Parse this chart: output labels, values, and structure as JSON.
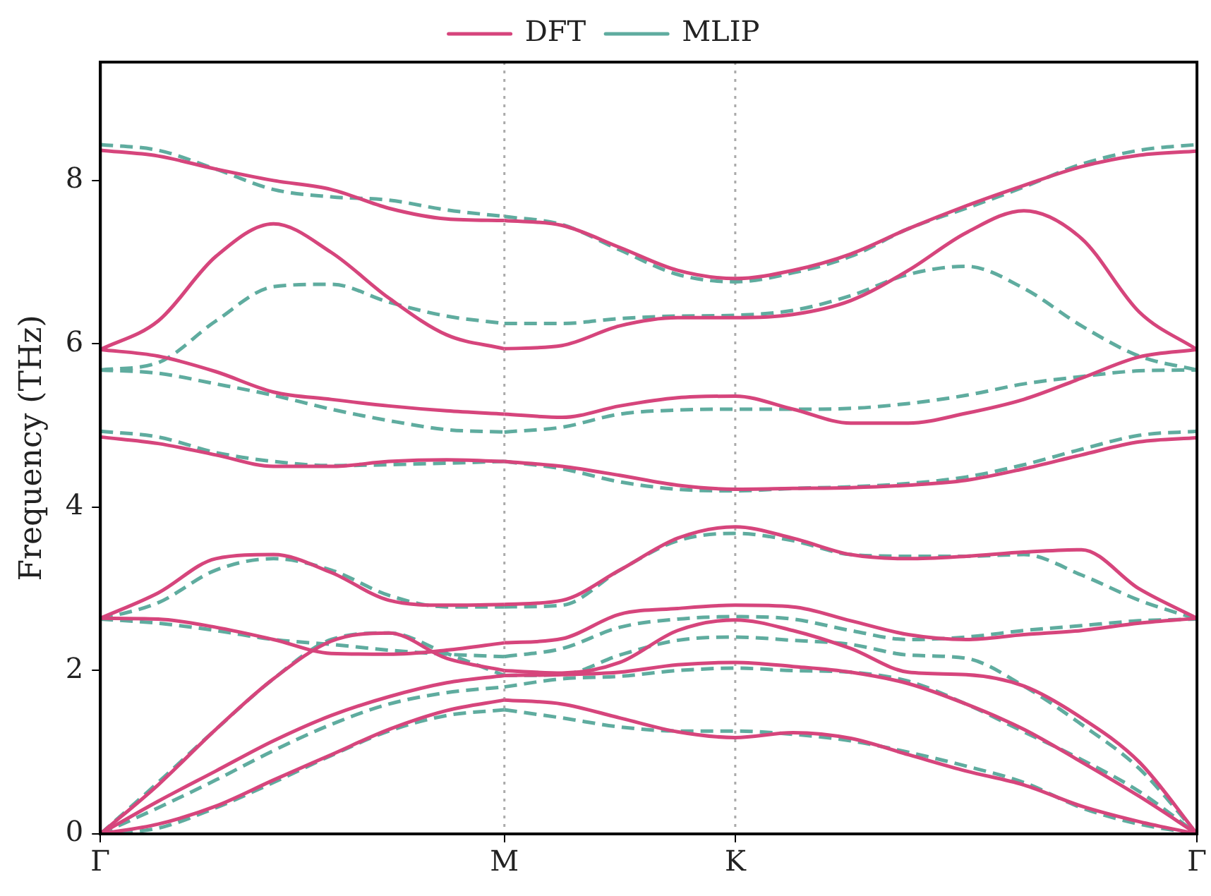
{
  "chart_data": {
    "type": "line",
    "ylabel": "Frequency (THz)",
    "legend": "top",
    "grid": false,
    "categories": [
      "Γ",
      null,
      null,
      null,
      null,
      null,
      null,
      "M",
      null,
      null,
      null,
      "K",
      null,
      null,
      null,
      null,
      null,
      null,
      null,
      "Γ"
    ],
    "ylim": [
      0,
      9.45
    ],
    "yticks": [
      0,
      2,
      4,
      6,
      8
    ],
    "ref_lines": [
      {
        "axis": "x",
        "value": "M",
        "color": "#aaaaaa",
        "line_style": "dotted"
      },
      {
        "axis": "x",
        "value": "K",
        "color": "#aaaaaa",
        "line_style": "dotted"
      }
    ],
    "series": [
      {
        "name": "DFT",
        "color": "#d6457c",
        "line_style": "solid",
        "values": [
          0,
          0.12,
          0.34,
          0.66,
          0.97,
          1.28,
          1.51,
          1.64,
          null,
          null,
          null,
          null,
          null,
          null,
          null,
          null,
          null,
          null,
          null,
          null
        ]
      },
      {
        "color": "#d6457c",
        "line_style": "solid",
        "values": [
          null,
          null,
          null,
          null,
          null,
          null,
          null,
          1.64,
          1.59,
          1.42,
          1.25,
          1.18,
          1.24,
          1.17,
          0.97,
          0.77,
          0.6,
          0.34,
          0.15,
          0
        ]
      },
      {
        "color": "#d6457c",
        "line_style": "solid",
        "values": [
          0,
          0.4,
          0.77,
          1.14,
          1.45,
          1.68,
          1.85,
          1.94,
          null,
          null,
          null,
          null,
          null,
          null,
          null,
          null,
          null,
          null,
          null,
          null
        ]
      },
      {
        "color": "#d6457c",
        "line_style": "solid",
        "values": [
          null,
          null,
          null,
          null,
          null,
          null,
          null,
          1.94,
          1.95,
          1.98,
          2.07,
          2.1,
          2.05,
          1.98,
          1.84,
          1.59,
          1.28,
          0.88,
          0.46,
          0
        ]
      },
      {
        "color": "#d6457c",
        "line_style": "solid",
        "values": [
          0,
          0.6,
          1.28,
          1.9,
          2.36,
          2.46,
          2.15,
          2.0,
          null,
          null,
          null,
          null,
          null,
          null,
          null,
          null,
          null,
          null,
          null,
          null
        ]
      },
      {
        "color": "#d6457c",
        "line_style": "solid",
        "values": [
          null,
          null,
          null,
          null,
          null,
          null,
          null,
          2.0,
          1.97,
          2.1,
          2.49,
          2.62,
          2.49,
          2.27,
          1.98,
          1.95,
          1.81,
          1.42,
          0.88,
          0
        ]
      },
      {
        "color": "#d6457c",
        "line_style": "solid",
        "values": [
          2.64,
          2.63,
          2.53,
          2.38,
          2.21,
          2.2,
          2.25,
          2.34,
          null,
          null,
          null,
          null,
          null,
          null,
          null,
          null,
          null,
          null,
          null,
          null
        ]
      },
      {
        "color": "#d6457c",
        "line_style": "solid",
        "values": [
          null,
          null,
          null,
          null,
          null,
          null,
          null,
          2.34,
          2.39,
          2.69,
          2.76,
          2.8,
          2.78,
          2.61,
          2.44,
          2.38,
          2.44,
          2.49,
          2.58,
          2.64
        ]
      },
      {
        "color": "#d6457c",
        "line_style": "solid",
        "values": [
          2.64,
          2.95,
          3.37,
          3.42,
          3.2,
          2.86,
          2.8,
          2.81,
          null,
          null,
          null,
          null,
          null,
          null,
          null,
          null,
          null,
          null,
          null,
          null
        ]
      },
      {
        "color": "#d6457c",
        "line_style": "solid",
        "values": [
          null,
          null,
          null,
          null,
          null,
          null,
          null,
          2.81,
          2.86,
          3.23,
          3.62,
          3.76,
          3.62,
          3.42,
          3.37,
          3.4,
          3.45,
          3.48,
          3.0,
          2.64
        ]
      },
      {
        "color": "#d6457c",
        "line_style": "solid",
        "values": [
          4.86,
          4.78,
          4.64,
          4.5,
          4.5,
          4.56,
          4.58,
          4.56,
          null,
          null,
          null,
          null,
          null,
          null,
          null,
          null,
          null,
          null,
          null,
          null
        ]
      },
      {
        "color": "#d6457c",
        "line_style": "solid",
        "values": [
          null,
          null,
          null,
          null,
          null,
          null,
          null,
          4.56,
          4.5,
          4.39,
          4.27,
          4.22,
          4.23,
          4.24,
          4.27,
          4.33,
          4.47,
          4.64,
          4.8,
          4.85
        ]
      },
      {
        "color": "#d6457c",
        "line_style": "solid",
        "values": [
          5.93,
          5.85,
          5.66,
          5.41,
          5.32,
          5.24,
          5.18,
          5.14,
          null,
          null,
          null,
          null,
          null,
          null,
          null,
          null,
          null,
          null,
          null,
          null
        ]
      },
      {
        "color": "#d6457c",
        "line_style": "solid",
        "values": [
          null,
          null,
          null,
          null,
          null,
          null,
          null,
          5.14,
          5.1,
          5.24,
          5.34,
          5.36,
          5.2,
          5.03,
          5.03,
          5.15,
          5.32,
          5.58,
          5.84,
          5.93
        ]
      },
      {
        "color": "#d6457c",
        "line_style": "solid",
        "values": [
          5.93,
          6.28,
          7.07,
          7.47,
          7.12,
          6.56,
          6.11,
          5.94,
          null,
          null,
          null,
          null,
          null,
          null,
          null,
          null,
          null,
          null,
          null,
          null
        ]
      },
      {
        "color": "#d6457c",
        "line_style": "solid",
        "values": [
          null,
          null,
          null,
          null,
          null,
          null,
          null,
          5.94,
          5.98,
          6.22,
          6.32,
          6.32,
          6.36,
          6.53,
          6.9,
          7.36,
          7.63,
          7.29,
          6.39,
          5.93
        ]
      },
      {
        "color": "#d6457c",
        "line_style": "solid",
        "values": [
          8.37,
          8.3,
          8.14,
          8.0,
          7.89,
          7.66,
          7.53,
          7.51,
          null,
          null,
          null,
          null,
          null,
          null,
          null,
          null,
          null,
          null,
          null,
          null
        ]
      },
      {
        "color": "#d6457c",
        "line_style": "solid",
        "values": [
          null,
          null,
          null,
          null,
          null,
          null,
          null,
          7.51,
          7.45,
          7.18,
          6.9,
          6.8,
          6.9,
          7.1,
          7.41,
          7.69,
          7.94,
          8.17,
          8.31,
          8.36
        ]
      },
      {
        "name": "MLIP",
        "color": "#5fac9f",
        "line_style": "dashed",
        "values": [
          0,
          0.07,
          0.32,
          0.63,
          0.96,
          1.26,
          1.45,
          1.52,
          null,
          null,
          null,
          null,
          null,
          null,
          null,
          null,
          null,
          null,
          null,
          null
        ]
      },
      {
        "color": "#5fac9f",
        "line_style": "dashed",
        "values": [
          null,
          null,
          null,
          null,
          null,
          null,
          null,
          1.52,
          1.42,
          1.31,
          1.26,
          1.26,
          1.22,
          1.14,
          1.0,
          0.83,
          0.63,
          0.32,
          0.12,
          0
        ]
      },
      {
        "color": "#5fac9f",
        "line_style": "dashed",
        "values": [
          0,
          0.32,
          0.66,
          1.02,
          1.34,
          1.59,
          1.73,
          1.8,
          null,
          null,
          null,
          null,
          null,
          null,
          null,
          null,
          null,
          null,
          null,
          null
        ]
      },
      {
        "color": "#5fac9f",
        "line_style": "dashed",
        "values": [
          null,
          null,
          null,
          null,
          null,
          null,
          null,
          1.8,
          1.9,
          1.93,
          2.0,
          2.03,
          2.0,
          1.98,
          1.87,
          1.59,
          1.25,
          0.91,
          0.52,
          0
        ]
      },
      {
        "color": "#5fac9f",
        "line_style": "dashed",
        "values": [
          0,
          0.63,
          1.28,
          1.9,
          2.38,
          2.46,
          2.21,
          1.94,
          null,
          null,
          null,
          null,
          null,
          null,
          null,
          null,
          null,
          null,
          null,
          null
        ]
      },
      {
        "color": "#5fac9f",
        "line_style": "dashed",
        "values": [
          null,
          null,
          null,
          null,
          null,
          null,
          null,
          1.94,
          1.95,
          2.19,
          2.37,
          2.41,
          2.37,
          2.32,
          2.19,
          2.15,
          1.81,
          1.34,
          0.8,
          0
        ]
      },
      {
        "color": "#5fac9f",
        "line_style": "dashed",
        "values": [
          2.63,
          2.58,
          2.49,
          2.38,
          2.32,
          2.25,
          2.2,
          2.17,
          null,
          null,
          null,
          null,
          null,
          null,
          null,
          null,
          null,
          null,
          null,
          null
        ]
      },
      {
        "color": "#5fac9f",
        "line_style": "dashed",
        "values": [
          null,
          null,
          null,
          null,
          null,
          null,
          null,
          2.17,
          2.27,
          2.53,
          2.63,
          2.66,
          2.63,
          2.49,
          2.38,
          2.41,
          2.49,
          2.55,
          2.61,
          2.63
        ]
      },
      {
        "color": "#5fac9f",
        "line_style": "dashed",
        "values": [
          2.63,
          2.83,
          3.23,
          3.37,
          3.23,
          2.92,
          2.78,
          2.78,
          null,
          null,
          null,
          null,
          null,
          null,
          null,
          null,
          null,
          null,
          null,
          null
        ]
      },
      {
        "color": "#5fac9f",
        "line_style": "dashed",
        "values": [
          null,
          null,
          null,
          null,
          null,
          null,
          null,
          2.78,
          2.8,
          3.23,
          3.59,
          3.68,
          3.59,
          3.42,
          3.4,
          3.4,
          3.42,
          3.17,
          2.86,
          2.63
        ]
      },
      {
        "color": "#5fac9f",
        "line_style": "dashed",
        "values": [
          4.93,
          4.86,
          4.67,
          4.56,
          4.51,
          4.52,
          4.54,
          4.56,
          null,
          null,
          null,
          null,
          null,
          null,
          null,
          null,
          null,
          null,
          null,
          null
        ]
      },
      {
        "color": "#5fac9f",
        "line_style": "dashed",
        "values": [
          null,
          null,
          null,
          null,
          null,
          null,
          null,
          4.56,
          4.47,
          4.31,
          4.22,
          4.2,
          4.23,
          4.25,
          4.29,
          4.37,
          4.52,
          4.71,
          4.88,
          4.93
        ]
      },
      {
        "color": "#5fac9f",
        "line_style": "dashed",
        "values": [
          5.68,
          5.64,
          5.51,
          5.37,
          5.2,
          5.06,
          4.95,
          4.92,
          null,
          null,
          null,
          null,
          null,
          null,
          null,
          null,
          null,
          null,
          null,
          null
        ]
      },
      {
        "color": "#5fac9f",
        "line_style": "dashed",
        "values": [
          null,
          null,
          null,
          null,
          null,
          null,
          null,
          4.92,
          4.98,
          5.14,
          5.19,
          5.2,
          5.2,
          5.21,
          5.27,
          5.37,
          5.51,
          5.6,
          5.67,
          5.68
        ]
      },
      {
        "color": "#5fac9f",
        "line_style": "dashed",
        "values": [
          5.68,
          5.77,
          6.28,
          6.7,
          6.73,
          6.51,
          6.34,
          6.25,
          null,
          null,
          null,
          null,
          null,
          null,
          null,
          null,
          null,
          null,
          null,
          null
        ]
      },
      {
        "color": "#5fac9f",
        "line_style": "dashed",
        "values": [
          null,
          null,
          null,
          null,
          null,
          null,
          null,
          6.25,
          6.25,
          6.31,
          6.34,
          6.35,
          6.41,
          6.59,
          6.85,
          6.95,
          6.68,
          6.22,
          5.85,
          5.68
        ]
      },
      {
        "color": "#5fac9f",
        "line_style": "dashed",
        "values": [
          8.44,
          8.37,
          8.14,
          7.89,
          7.8,
          7.76,
          7.64,
          7.56,
          null,
          null,
          null,
          null,
          null,
          null,
          null,
          null,
          null,
          null,
          null,
          null
        ]
      },
      {
        "color": "#5fac9f",
        "line_style": "dashed",
        "values": [
          null,
          null,
          null,
          null,
          null,
          null,
          null,
          7.56,
          7.46,
          7.15,
          6.85,
          6.76,
          6.87,
          7.07,
          7.41,
          7.66,
          7.92,
          8.2,
          8.37,
          8.44
        ]
      }
    ]
  }
}
